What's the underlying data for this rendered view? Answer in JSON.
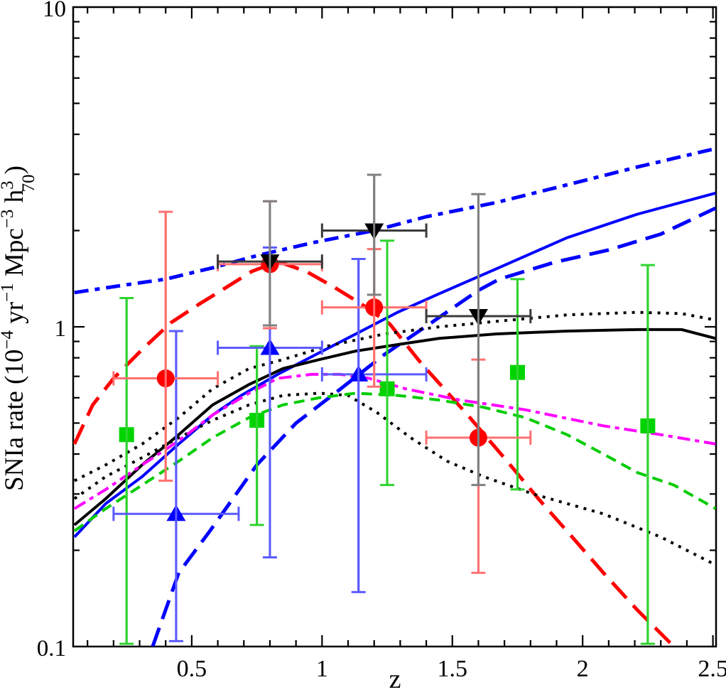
{
  "chart_data": {
    "type": "line+scatter",
    "title": "",
    "xlabel": "z",
    "ylabel_plain": "SNIa rate (10^-4 yr^-1 Mpc^-3 h70^3)",
    "ylabel_parts": [
      {
        "t": "SNIa rate (10",
        "o": "n"
      },
      {
        "t": "−4",
        "o": "sup"
      },
      {
        "t": " yr",
        "o": "n"
      },
      {
        "t": "−1",
        "o": "sup"
      },
      {
        "t": " Mpc",
        "o": "n"
      },
      {
        "t": "−3",
        "o": "sup"
      },
      {
        "t": " h",
        "o": "n"
      },
      {
        "t": "3",
        "o": "sup"
      },
      {
        "t": "70",
        "o": "stack"
      },
      {
        "t": ")",
        "o": "n"
      }
    ],
    "x_axis": {
      "min": 0.045,
      "max": 2.512,
      "scale": "linear",
      "minor_step": 0.1,
      "major_ticks": [
        0.5,
        1,
        1.5,
        2,
        2.5
      ],
      "major_labels": [
        "0.5",
        "1",
        "1.5",
        "2",
        "2.5"
      ]
    },
    "y_axis": {
      "min": 0.1,
      "max": 10,
      "scale": "log",
      "major_ticks": [
        10,
        1,
        0.1
      ],
      "major_labels": [
        "10",
        "1",
        "0.1"
      ]
    },
    "grid": false,
    "legend": "none",
    "curves": [
      {
        "name": "blue-dash-dot-upper",
        "color": "#0000ff",
        "width": 5,
        "dash": "20 9 7 9",
        "points": [
          [
            0.05,
            1.28
          ],
          [
            0.24,
            1.35
          ],
          [
            0.4,
            1.41
          ],
          [
            0.58,
            1.53
          ],
          [
            0.75,
            1.67
          ],
          [
            0.96,
            1.83
          ],
          [
            1.2,
            2.0
          ],
          [
            1.4,
            2.21
          ],
          [
            1.67,
            2.45
          ],
          [
            1.94,
            2.78
          ],
          [
            2.21,
            3.16
          ],
          [
            2.51,
            3.61
          ]
        ]
      },
      {
        "name": "blue-solid",
        "color": "#0000ff",
        "width": 4,
        "dash": "",
        "points": [
          [
            0.05,
            0.22
          ],
          [
            0.17,
            0.28
          ],
          [
            0.31,
            0.34
          ],
          [
            0.45,
            0.43
          ],
          [
            0.58,
            0.53
          ],
          [
            0.69,
            0.61
          ],
          [
            0.83,
            0.71
          ],
          [
            0.99,
            0.83
          ],
          [
            1.13,
            0.95
          ],
          [
            1.29,
            1.11
          ],
          [
            1.45,
            1.27
          ],
          [
            1.67,
            1.52
          ],
          [
            1.94,
            1.9
          ],
          [
            2.21,
            2.25
          ],
          [
            2.51,
            2.62
          ]
        ]
      },
      {
        "name": "blue-long-dash-lower",
        "color": "#0000ff",
        "width": 5,
        "dash": "28 13",
        "points": [
          [
            0.35,
            0.1
          ],
          [
            0.45,
            0.17
          ],
          [
            0.57,
            0.23
          ],
          [
            0.75,
            0.37
          ],
          [
            0.9,
            0.5
          ],
          [
            1.05,
            0.62
          ],
          [
            1.24,
            0.82
          ],
          [
            1.42,
            1.03
          ],
          [
            1.6,
            1.3
          ],
          [
            1.68,
            1.41
          ],
          [
            1.89,
            1.59
          ],
          [
            2.1,
            1.74
          ],
          [
            2.3,
            1.95
          ],
          [
            2.51,
            2.35
          ]
        ]
      },
      {
        "name": "red-long-dash",
        "color": "#ff0000",
        "width": 5,
        "dash": "30 14",
        "points": [
          [
            0.05,
            0.43
          ],
          [
            0.12,
            0.57
          ],
          [
            0.2,
            0.69
          ],
          [
            0.31,
            0.85
          ],
          [
            0.42,
            1.03
          ],
          [
            0.53,
            1.18
          ],
          [
            0.64,
            1.34
          ],
          [
            0.73,
            1.49
          ],
          [
            0.83,
            1.6
          ],
          [
            0.94,
            1.49
          ],
          [
            1.04,
            1.34
          ],
          [
            1.15,
            1.18
          ],
          [
            1.26,
            1.02
          ],
          [
            1.38,
            0.77
          ],
          [
            1.55,
            0.54
          ],
          [
            1.71,
            0.38
          ],
          [
            1.83,
            0.29
          ],
          [
            1.96,
            0.22
          ],
          [
            2.08,
            0.17
          ],
          [
            2.21,
            0.13
          ],
          [
            2.35,
            0.1
          ]
        ]
      },
      {
        "name": "black-solid",
        "color": "#000000",
        "width": 4,
        "dash": "",
        "points": [
          [
            0.05,
            0.24
          ],
          [
            0.17,
            0.29
          ],
          [
            0.31,
            0.37
          ],
          [
            0.45,
            0.46
          ],
          [
            0.58,
            0.57
          ],
          [
            0.72,
            0.66
          ],
          [
            0.85,
            0.74
          ],
          [
            0.99,
            0.79
          ],
          [
            1.13,
            0.84
          ],
          [
            1.29,
            0.88
          ],
          [
            1.45,
            0.92
          ],
          [
            1.67,
            0.95
          ],
          [
            1.94,
            0.97
          ],
          [
            2.21,
            0.98
          ],
          [
            2.38,
            0.98
          ],
          [
            2.51,
            0.92
          ]
        ]
      },
      {
        "name": "black-dotted-upper",
        "color": "#000000",
        "width": 4,
        "dash": "4 8",
        "points": [
          [
            0.05,
            0.33
          ],
          [
            0.17,
            0.37
          ],
          [
            0.31,
            0.43
          ],
          [
            0.45,
            0.52
          ],
          [
            0.58,
            0.64
          ],
          [
            0.72,
            0.74
          ],
          [
            0.85,
            0.79
          ],
          [
            1.02,
            0.87
          ],
          [
            1.24,
            0.95
          ],
          [
            1.45,
            1.0
          ],
          [
            1.67,
            1.04
          ],
          [
            1.94,
            1.09
          ],
          [
            2.21,
            1.11
          ],
          [
            2.38,
            1.1
          ],
          [
            2.51,
            1.05
          ]
        ]
      },
      {
        "name": "black-dotted-lower",
        "color": "#000000",
        "width": 4,
        "dash": "4 8",
        "points": [
          [
            0.05,
            0.29
          ],
          [
            0.17,
            0.34
          ],
          [
            0.31,
            0.39
          ],
          [
            0.45,
            0.45
          ],
          [
            0.58,
            0.51
          ],
          [
            0.72,
            0.57
          ],
          [
            0.85,
            0.61
          ],
          [
            0.99,
            0.62
          ],
          [
            1.1,
            0.61
          ],
          [
            1.21,
            0.54
          ],
          [
            1.34,
            0.45
          ],
          [
            1.48,
            0.38
          ],
          [
            1.62,
            0.34
          ],
          [
            1.81,
            0.3
          ],
          [
            2.08,
            0.26
          ],
          [
            2.3,
            0.22
          ],
          [
            2.51,
            0.18
          ]
        ]
      },
      {
        "name": "magenta-dash-dot",
        "color": "#ff00ff",
        "width": 4,
        "dash": "18 7 6 7",
        "points": [
          [
            0.05,
            0.27
          ],
          [
            0.17,
            0.31
          ],
          [
            0.31,
            0.37
          ],
          [
            0.45,
            0.44
          ],
          [
            0.58,
            0.53
          ],
          [
            0.72,
            0.62
          ],
          [
            0.83,
            0.69
          ],
          [
            0.96,
            0.71
          ],
          [
            1.07,
            0.71
          ],
          [
            1.18,
            0.69
          ],
          [
            1.32,
            0.64
          ],
          [
            1.53,
            0.59
          ],
          [
            1.78,
            0.55
          ],
          [
            2.08,
            0.49
          ],
          [
            2.3,
            0.46
          ],
          [
            2.51,
            0.43
          ]
        ]
      },
      {
        "name": "green-dashed",
        "color": "#00cc00",
        "width": 4,
        "dash": "15 9",
        "points": [
          [
            0.05,
            0.23
          ],
          [
            0.17,
            0.27
          ],
          [
            0.31,
            0.32
          ],
          [
            0.45,
            0.38
          ],
          [
            0.58,
            0.45
          ],
          [
            0.72,
            0.52
          ],
          [
            0.85,
            0.57
          ],
          [
            0.99,
            0.6
          ],
          [
            1.13,
            0.62
          ],
          [
            1.29,
            0.61
          ],
          [
            1.45,
            0.59
          ],
          [
            1.62,
            0.56
          ],
          [
            1.78,
            0.52
          ],
          [
            1.94,
            0.46
          ],
          [
            2.08,
            0.4
          ],
          [
            2.21,
            0.35
          ],
          [
            2.35,
            0.32
          ],
          [
            2.51,
            0.27
          ]
        ]
      }
    ],
    "point_sets": [
      {
        "name": "green-squares",
        "marker": "square",
        "color": "#00d400",
        "err_color": "#2fd32f",
        "errh_color": "#2fd32f",
        "points": [
          {
            "z": 0.25,
            "v": 0.46,
            "vlo": 0.102,
            "vhi": 1.23
          },
          {
            "z": 0.75,
            "v": 0.51,
            "vlo": 0.24,
            "vhi": 0.87
          },
          {
            "z": 1.25,
            "v": 0.64,
            "vlo": 0.32,
            "vhi": 1.86
          },
          {
            "z": 1.75,
            "v": 0.72,
            "vlo": 0.31,
            "vhi": 1.41
          },
          {
            "z": 2.25,
            "v": 0.49,
            "vlo": 0.102,
            "vhi": 1.56
          }
        ]
      },
      {
        "name": "blue-up-triangles",
        "marker": "triangle-up",
        "color": "#0000ff",
        "err_color": "#5b5bff",
        "errh_color": "#5b5bff",
        "points": [
          {
            "z": 0.44,
            "v": 0.26,
            "zlo": 0.2,
            "zhi": 0.68,
            "vlo": 0.104,
            "vhi": 0.97
          },
          {
            "z": 0.8,
            "v": 0.86,
            "zlo": 0.6,
            "zhi": 1.0,
            "vlo": 0.19,
            "vhi": 1.77
          },
          {
            "z": 1.14,
            "v": 0.71,
            "zlo": 1.0,
            "zhi": 1.4,
            "vlo": 0.148,
            "vhi": 1.63
          }
        ]
      },
      {
        "name": "red-circles",
        "marker": "circle",
        "color": "#ff0000",
        "err_color": "#ff7070",
        "errh_color": "#ff7070",
        "points": [
          {
            "z": 0.4,
            "v": 0.69,
            "zlo": 0.2,
            "zhi": 0.6,
            "vlo": 0.33,
            "vhi": 2.29
          },
          {
            "z": 0.8,
            "v": 1.57,
            "zlo": 0.6,
            "zhi": 1.0,
            "vlo": 0.99,
            "vhi": 2.47
          },
          {
            "z": 1.2,
            "v": 1.15,
            "zlo": 1.0,
            "zhi": 1.4,
            "vlo": 0.65,
            "vhi": 1.75
          },
          {
            "z": 1.6,
            "v": 0.45,
            "zlo": 1.4,
            "zhi": 1.8,
            "vlo": 0.17,
            "vhi": 0.79
          }
        ]
      },
      {
        "name": "black-down-triangles",
        "marker": "triangle-down",
        "color": "#000000",
        "err_color": "#808080",
        "errh_color": "#3a3a3a",
        "points": [
          {
            "z": 0.8,
            "v": 1.6,
            "zlo": 0.6,
            "zhi": 1.0,
            "vlo": 1.01,
            "vhi": 2.47
          },
          {
            "z": 1.2,
            "v": 2.0,
            "zlo": 1.0,
            "zhi": 1.4,
            "vlo": 1.26,
            "vhi": 2.99
          },
          {
            "z": 1.6,
            "v": 1.08,
            "zlo": 1.4,
            "zhi": 1.8,
            "vlo": 0.32,
            "vhi": 2.6
          }
        ]
      }
    ]
  }
}
